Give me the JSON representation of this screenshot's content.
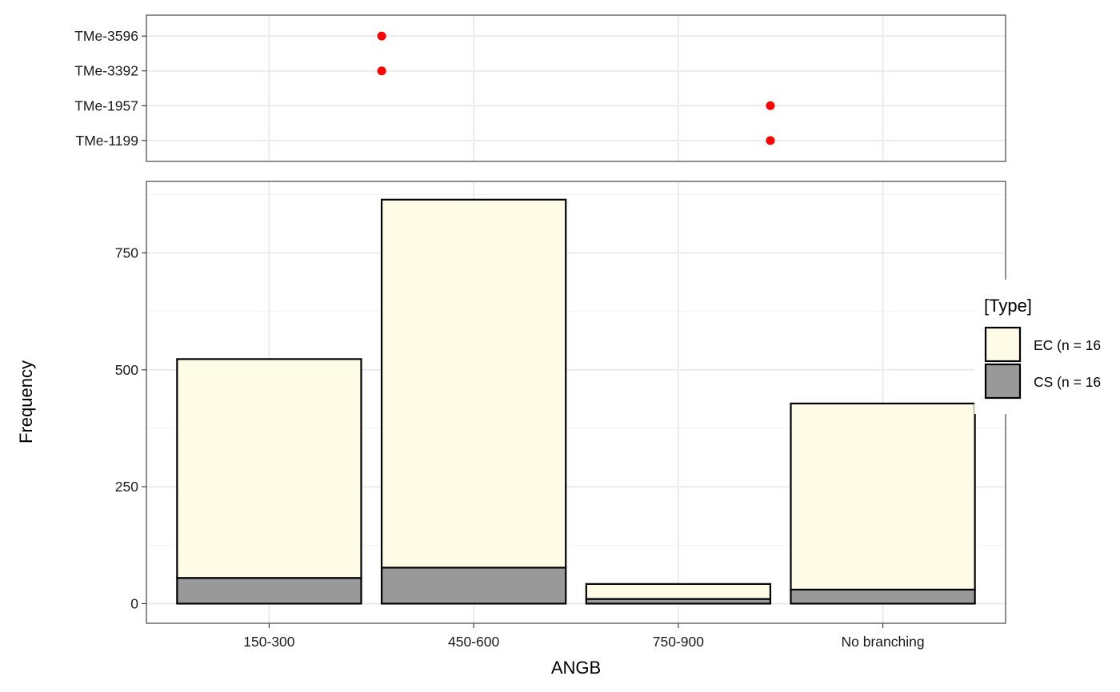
{
  "chart_data": [
    {
      "type": "scatter",
      "categories": [
        "150-300",
        "450-600",
        "750-900",
        "No branching"
      ],
      "y_categories": [
        "TMe-3596",
        "TMe-3392",
        "TMe-1957",
        "TMe-1199"
      ],
      "points": [
        {
          "y": "TMe-3596",
          "x": 1.55
        },
        {
          "y": "TMe-3392",
          "x": 1.55
        },
        {
          "y": "TMe-1957",
          "x": 3.45
        },
        {
          "y": "TMe-1199",
          "x": 3.45
        }
      ],
      "point_color": "#ff0000",
      "grid": true
    },
    {
      "type": "bar",
      "stacked": true,
      "categories": [
        "150-300",
        "450-600",
        "750-900",
        "No branching"
      ],
      "series": [
        {
          "name": "CS (n = 16",
          "values": [
            55,
            77,
            10,
            30
          ],
          "color": "#999999"
        },
        {
          "name": "EC (n = 16",
          "values": [
            468,
            787,
            32,
            398
          ],
          "color": "#fefbe6"
        }
      ],
      "xlabel": "ANGB",
      "ylabel": "Frequency",
      "yticks": [
        0,
        250,
        500,
        750
      ],
      "ylim": [
        -42,
        903
      ],
      "grid": true,
      "legend": {
        "title": "[Type]",
        "placement": "right",
        "entries": [
          {
            "label": "EC (n = 16",
            "color": "#fefbe6"
          },
          {
            "label": "CS (n = 16",
            "color": "#999999"
          }
        ]
      }
    }
  ]
}
